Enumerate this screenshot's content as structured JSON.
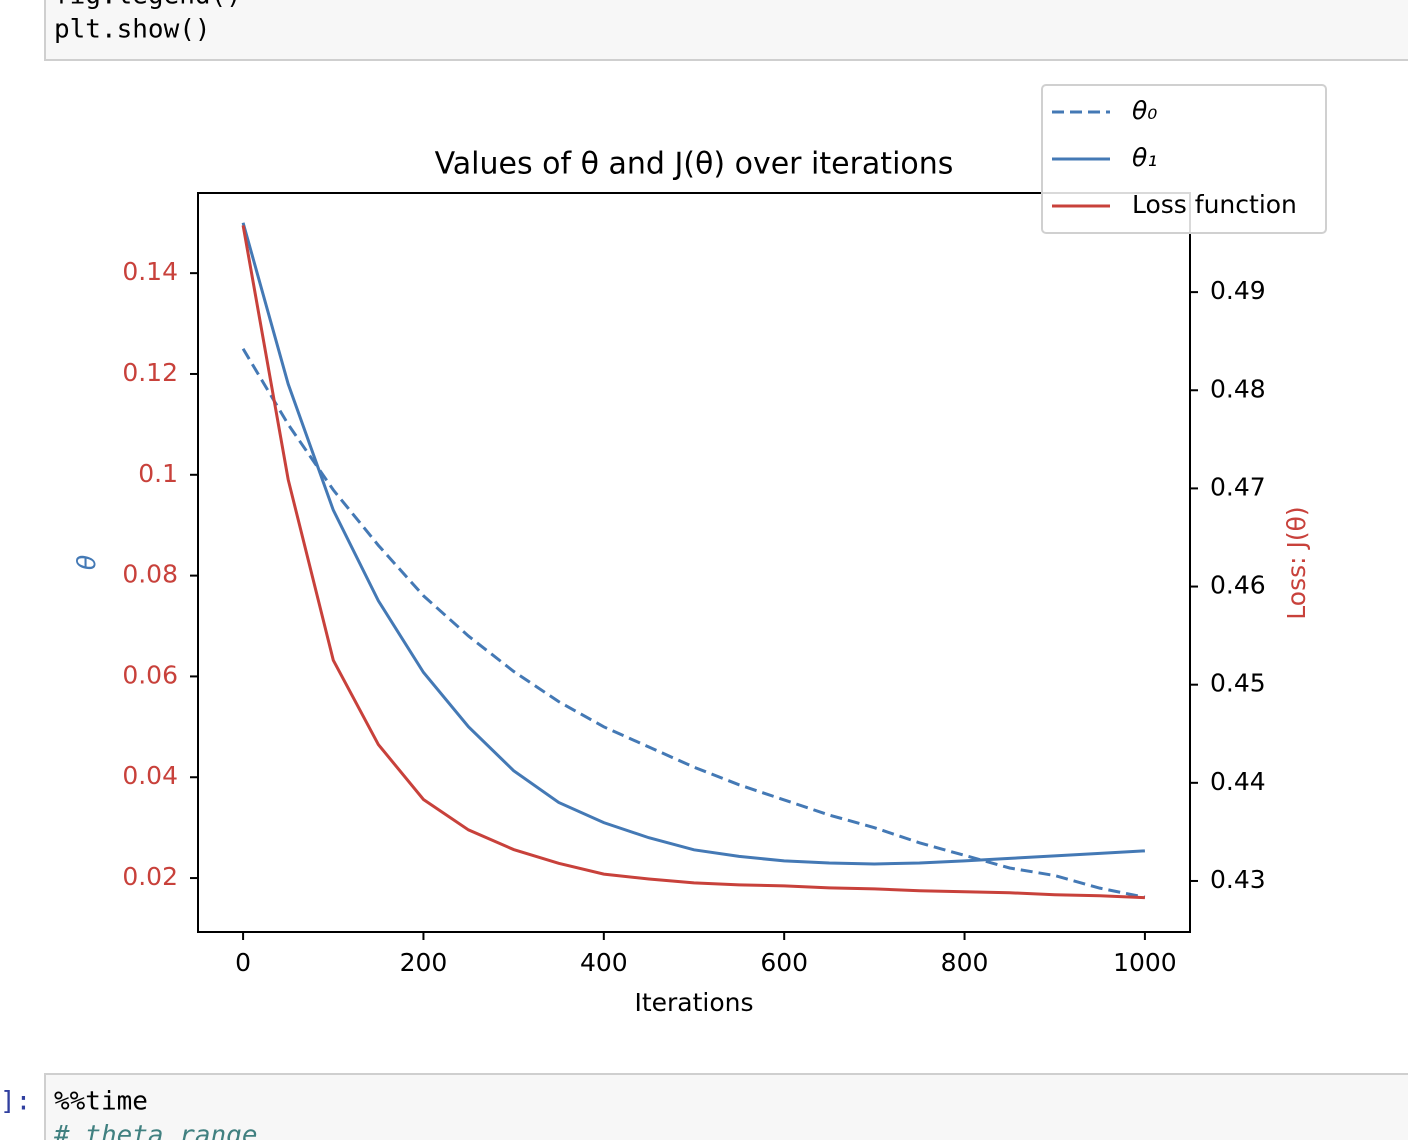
{
  "cells": {
    "top_code": [
      "fig.legend()",
      "plt.show()"
    ],
    "bottom_prompt": "]:",
    "bottom_code": [
      "%%time",
      "# theta range"
    ]
  },
  "chart_data": {
    "type": "line",
    "title": "Values of θ and J(θ) over iterations",
    "xlabel": "Iterations",
    "ylabel": "θ",
    "y2label": "Loss: J(θ)",
    "x": [
      0,
      50,
      100,
      150,
      200,
      250,
      300,
      350,
      400,
      450,
      500,
      550,
      600,
      650,
      700,
      750,
      800,
      850,
      900,
      950,
      1000
    ],
    "series": [
      {
        "name": "θ₀",
        "color": "#4479b5",
        "dash": true,
        "axis": "y",
        "values": [
          0.125,
          0.11,
          0.097,
          0.086,
          0.076,
          0.068,
          0.061,
          0.055,
          0.05,
          0.046,
          0.042,
          0.0385,
          0.0355,
          0.0325,
          0.03,
          0.027,
          0.0245,
          0.022,
          0.0205,
          0.018,
          0.0162
        ]
      },
      {
        "name": "θ₁",
        "color": "#4479b5",
        "dash": false,
        "axis": "y",
        "values": [
          0.15,
          0.118,
          0.093,
          0.075,
          0.0608,
          0.05,
          0.0413,
          0.035,
          0.031,
          0.028,
          0.0256,
          0.0243,
          0.0234,
          0.023,
          0.0228,
          0.023,
          0.0234,
          0.0239,
          0.0244,
          0.0249,
          0.0254
        ]
      },
      {
        "name": "Loss function",
        "color": "#c8413b",
        "dash": false,
        "axis": "y2",
        "values": [
          0.4968,
          0.4709,
          0.4525,
          0.4439,
          0.4383,
          0.4352,
          0.4332,
          0.4318,
          0.4307,
          0.4302,
          0.4298,
          0.4296,
          0.4295,
          0.4293,
          0.4292,
          0.429,
          0.4289,
          0.4288,
          0.4286,
          0.4285,
          0.4283
        ]
      }
    ],
    "xlim": [
      -50,
      1050
    ],
    "xticks": [
      0,
      200,
      400,
      600,
      800,
      1000
    ],
    "ylim": [
      0.0093,
      0.1559
    ],
    "yticks": [
      0.02,
      0.04,
      0.06,
      0.08,
      0.1,
      0.12,
      0.14
    ],
    "y2lim": [
      0.4248,
      0.5001
    ],
    "y2ticks": [
      0.43,
      0.44,
      0.45,
      0.46,
      0.47,
      0.48,
      0.49
    ],
    "ytick_color": "#c8413b",
    "ylabel_color": "#4479b5",
    "y2label_color": "#c8413b",
    "legend": "upper right"
  }
}
